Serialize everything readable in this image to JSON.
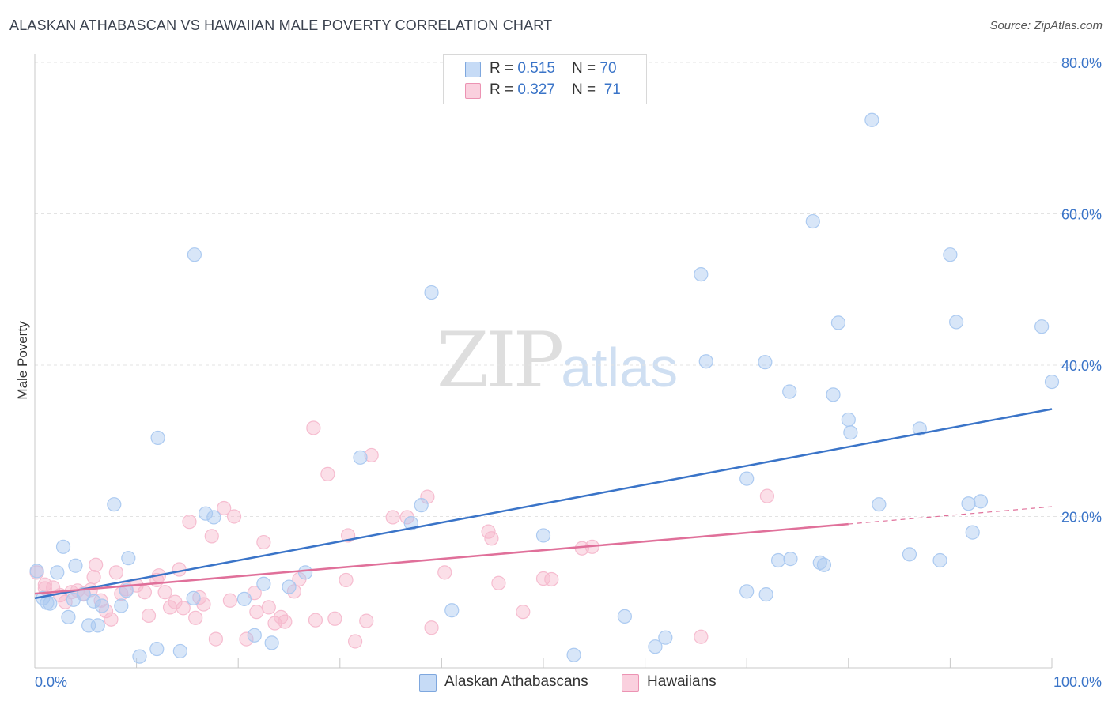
{
  "header": {
    "title": "ALASKAN ATHABASCAN VS HAWAIIAN MALE POVERTY CORRELATION CHART",
    "source": "Source: ZipAtlas.com"
  },
  "watermark": {
    "zip": "ZIP",
    "atlas": "atlas"
  },
  "legend": {
    "rows": [
      {
        "r_label": "R = ",
        "r_value": "0.515",
        "n_label": "N = ",
        "n_value": "70",
        "color": "#a9c8f0"
      },
      {
        "r_label": "R = ",
        "r_value": "0.327",
        "n_label": "N = ",
        "n_value": " 71",
        "color": "#f6b9cd"
      }
    ]
  },
  "bottom_legend": [
    {
      "label": "Alaskan Athabascans",
      "color": "#a9c8f0"
    },
    {
      "label": "Hawaiians",
      "color": "#f6b9cd"
    }
  ],
  "chart_data": {
    "type": "scatter",
    "title": "ALASKAN ATHABASCAN VS HAWAIIAN MALE POVERTY CORRELATION CHART",
    "xlabel": "",
    "ylabel": "Male Poverty",
    "xlim": [
      0,
      100
    ],
    "ylim": [
      0,
      80
    ],
    "x_tick_labels": [
      "0.0%",
      "100.0%"
    ],
    "y_ticks": [
      20,
      40,
      60,
      80
    ],
    "y_tick_labels": [
      "20.0%",
      "40.0%",
      "60.0%",
      "80.0%"
    ],
    "grid": true,
    "series": [
      {
        "name": "Alaskan Athabascans",
        "color": "#3a74c8",
        "fill": "#a9c8f0",
        "trend": {
          "x": [
            0,
            100
          ],
          "y": [
            9.2,
            34.2
          ],
          "dashed_from": null
        },
        "points": [
          [
            0.2,
            12.8
          ],
          [
            0.8,
            9.2
          ],
          [
            1.5,
            8.5
          ],
          [
            2.2,
            12.6
          ],
          [
            2.8,
            16.0
          ],
          [
            3.3,
            6.7
          ],
          [
            3.8,
            9.0
          ],
          [
            4.0,
            13.5
          ],
          [
            4.8,
            9.7
          ],
          [
            5.3,
            5.6
          ],
          [
            5.8,
            8.8
          ],
          [
            6.2,
            5.6
          ],
          [
            6.6,
            8.2
          ],
          [
            7.8,
            21.6
          ],
          [
            8.5,
            8.2
          ],
          [
            9.0,
            10.2
          ],
          [
            9.2,
            14.5
          ],
          [
            10.3,
            1.5
          ],
          [
            12.0,
            2.5
          ],
          [
            12.1,
            30.4
          ],
          [
            14.3,
            2.2
          ],
          [
            15.6,
            9.2
          ],
          [
            15.7,
            54.6
          ],
          [
            16.8,
            20.4
          ],
          [
            17.6,
            19.9
          ],
          [
            20.6,
            9.1
          ],
          [
            21.6,
            4.3
          ],
          [
            22.5,
            11.1
          ],
          [
            23.3,
            3.3
          ],
          [
            25.0,
            10.7
          ],
          [
            26.6,
            12.6
          ],
          [
            32.0,
            27.8
          ],
          [
            38.0,
            21.5
          ],
          [
            37.0,
            19.1
          ],
          [
            39.0,
            49.6
          ],
          [
            41.0,
            7.6
          ],
          [
            50.0,
            17.5
          ],
          [
            53.0,
            1.7
          ],
          [
            58.0,
            6.8
          ],
          [
            61.0,
            2.8
          ],
          [
            62.0,
            4.0
          ],
          [
            65.5,
            52.0
          ],
          [
            66.0,
            40.5
          ],
          [
            70.0,
            25.0
          ],
          [
            70.0,
            10.1
          ],
          [
            71.8,
            40.4
          ],
          [
            71.9,
            9.7
          ],
          [
            73.1,
            14.2
          ],
          [
            74.2,
            36.5
          ],
          [
            74.3,
            14.4
          ],
          [
            76.5,
            59.0
          ],
          [
            77.2,
            13.9
          ],
          [
            77.6,
            13.6
          ],
          [
            78.5,
            36.1
          ],
          [
            79.0,
            45.6
          ],
          [
            80.0,
            32.8
          ],
          [
            80.2,
            31.1
          ],
          [
            82.3,
            72.4
          ],
          [
            83.0,
            21.6
          ],
          [
            86.0,
            15.0
          ],
          [
            87.0,
            31.6
          ],
          [
            89.0,
            14.2
          ],
          [
            90.0,
            54.6
          ],
          [
            90.6,
            45.7
          ],
          [
            91.8,
            21.7
          ],
          [
            92.2,
            17.9
          ],
          [
            93.0,
            22.0
          ],
          [
            99.0,
            45.1
          ],
          [
            100.0,
            37.8
          ],
          [
            1.2,
            8.6
          ]
        ]
      },
      {
        "name": "Hawaiians",
        "color": "#e0709a",
        "fill": "#f6b9cd",
        "trend": {
          "x": [
            0,
            80,
            100
          ],
          "y": [
            9.8,
            19.0,
            21.3
          ],
          "dashed_from": 80
        },
        "points": [
          [
            0.2,
            12.6
          ],
          [
            1.0,
            11.0
          ],
          [
            1.8,
            10.6
          ],
          [
            2.5,
            9.6
          ],
          [
            3.0,
            8.7
          ],
          [
            3.6,
            10.0
          ],
          [
            4.2,
            10.2
          ],
          [
            4.8,
            9.8
          ],
          [
            5.5,
            10.3
          ],
          [
            5.8,
            12.0
          ],
          [
            6.0,
            13.6
          ],
          [
            6.5,
            8.9
          ],
          [
            7.0,
            7.5
          ],
          [
            7.5,
            6.4
          ],
          [
            8.0,
            12.6
          ],
          [
            8.5,
            9.8
          ],
          [
            9.0,
            10.4
          ],
          [
            10.0,
            10.9
          ],
          [
            10.8,
            10.0
          ],
          [
            11.2,
            6.9
          ],
          [
            12.0,
            11.6
          ],
          [
            12.2,
            12.2
          ],
          [
            12.8,
            10.0
          ],
          [
            13.3,
            8.0
          ],
          [
            13.8,
            8.7
          ],
          [
            14.2,
            13.0
          ],
          [
            14.6,
            7.9
          ],
          [
            15.2,
            19.3
          ],
          [
            15.8,
            6.6
          ],
          [
            16.2,
            9.3
          ],
          [
            16.6,
            8.4
          ],
          [
            17.4,
            17.4
          ],
          [
            17.8,
            3.8
          ],
          [
            18.6,
            21.1
          ],
          [
            19.2,
            8.9
          ],
          [
            19.6,
            20.0
          ],
          [
            20.8,
            3.8
          ],
          [
            21.6,
            9.9
          ],
          [
            21.8,
            7.4
          ],
          [
            22.5,
            16.6
          ],
          [
            23.0,
            8.0
          ],
          [
            23.6,
            5.9
          ],
          [
            24.2,
            6.7
          ],
          [
            24.6,
            6.1
          ],
          [
            25.5,
            10.1
          ],
          [
            26.0,
            11.7
          ],
          [
            27.4,
            31.7
          ],
          [
            27.6,
            6.3
          ],
          [
            28.8,
            25.6
          ],
          [
            29.5,
            6.5
          ],
          [
            30.6,
            11.6
          ],
          [
            30.8,
            17.5
          ],
          [
            31.5,
            3.5
          ],
          [
            32.6,
            6.2
          ],
          [
            33.1,
            28.1
          ],
          [
            35.2,
            19.9
          ],
          [
            36.6,
            19.9
          ],
          [
            38.6,
            22.6
          ],
          [
            39.0,
            5.3
          ],
          [
            40.3,
            12.6
          ],
          [
            44.6,
            18.0
          ],
          [
            44.9,
            17.1
          ],
          [
            45.6,
            11.2
          ],
          [
            48.0,
            7.4
          ],
          [
            50.0,
            11.8
          ],
          [
            50.8,
            11.7
          ],
          [
            53.8,
            15.8
          ],
          [
            54.8,
            16.0
          ],
          [
            65.5,
            4.1
          ],
          [
            72.0,
            22.7
          ],
          [
            1.0,
            10.5
          ]
        ]
      }
    ]
  }
}
